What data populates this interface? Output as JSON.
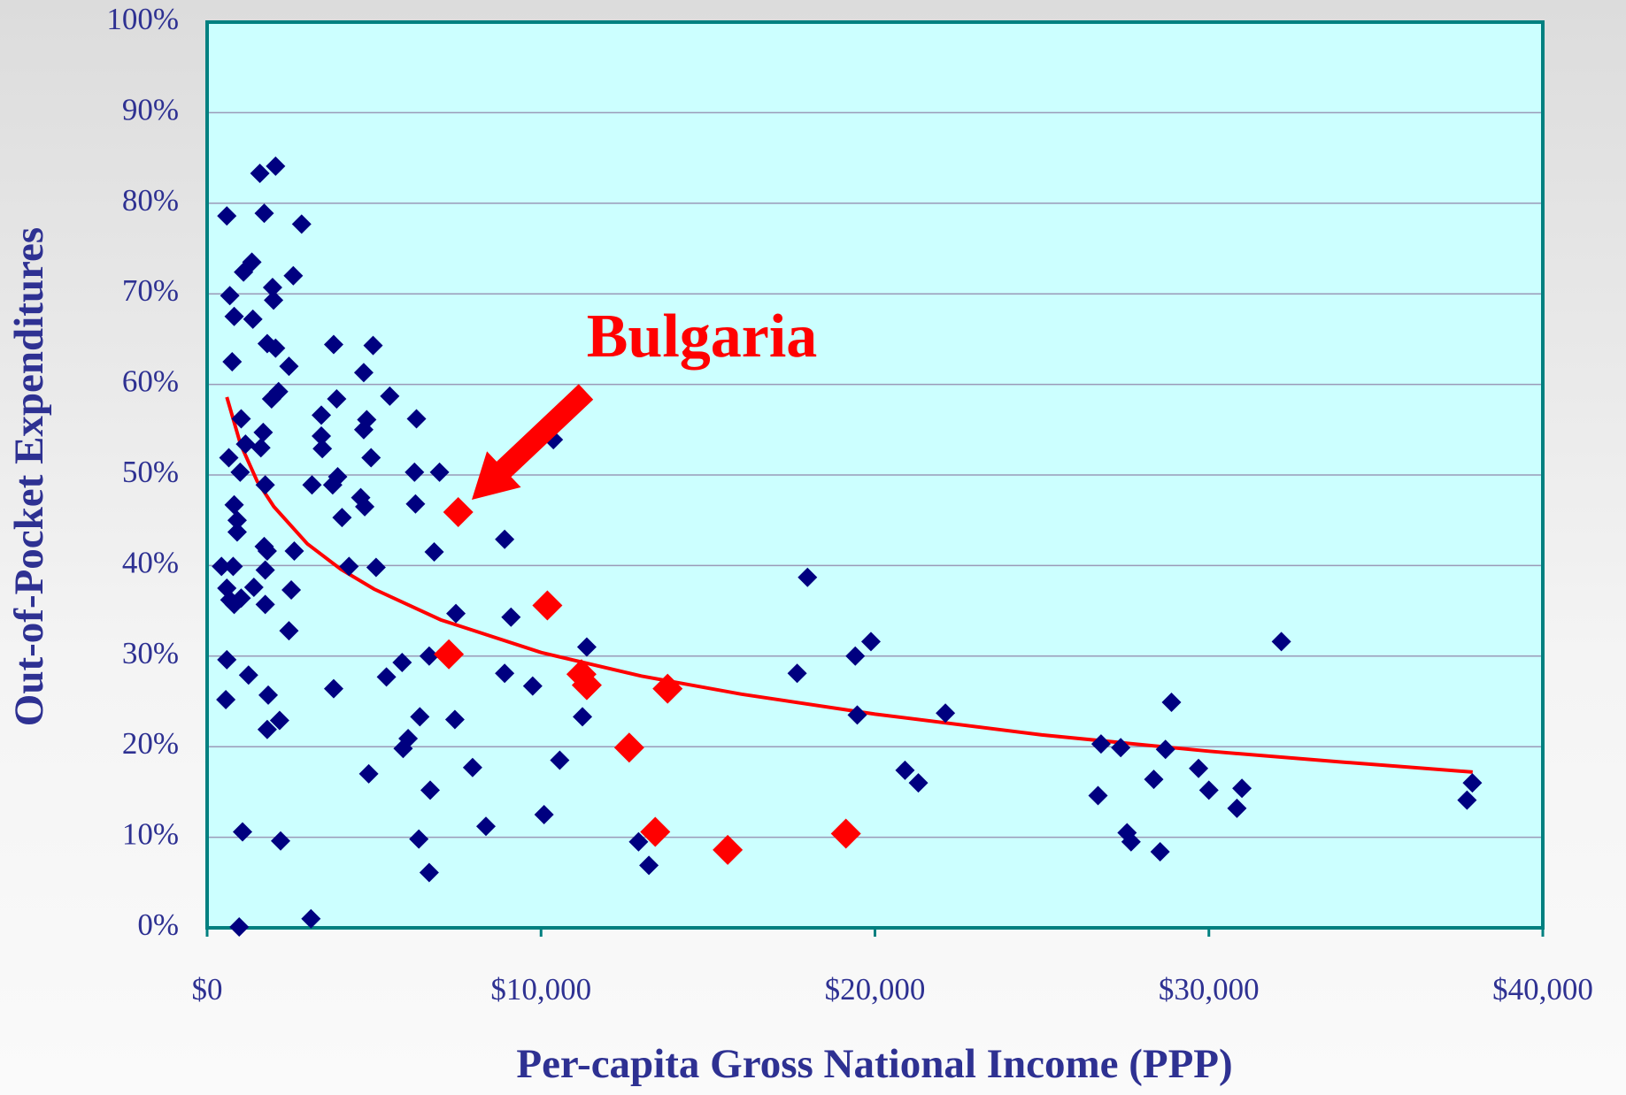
{
  "chart_data": {
    "type": "scatter",
    "xlabel": "Per-capita Gross National Income (PPP)",
    "ylabel": "Out-of-Pocket Expenditures",
    "xlim": [
      0,
      40000
    ],
    "ylim": [
      0,
      100
    ],
    "xticks": [
      {
        "value": 0,
        "label": "$0"
      },
      {
        "value": 10000,
        "label": "$10,000"
      },
      {
        "value": 20000,
        "label": "$20,000"
      },
      {
        "value": 30000,
        "label": "$30,000"
      },
      {
        "value": 40000,
        "label": "$40,000"
      }
    ],
    "yticks": [
      {
        "value": 0,
        "label": "0%"
      },
      {
        "value": 10,
        "label": "10%"
      },
      {
        "value": 20,
        "label": "20%"
      },
      {
        "value": 30,
        "label": "30%"
      },
      {
        "value": 40,
        "label": "40%"
      },
      {
        "value": 50,
        "label": "50%"
      },
      {
        "value": 60,
        "label": "60%"
      },
      {
        "value": 70,
        "label": "70%"
      },
      {
        "value": 80,
        "label": "80%"
      },
      {
        "value": 90,
        "label": "90%"
      },
      {
        "value": 100,
        "label": "100%"
      }
    ],
    "grid": true,
    "annotations": [
      {
        "text": "Bulgaria",
        "color": "#ff0000"
      }
    ],
    "series": [
      {
        "mode": "markers",
        "color": "#000080",
        "x": [
          590,
          680,
          810,
          750,
          1090,
          1340,
          1370,
          1020,
          1150,
          650,
          990,
          810,
          900,
          900,
          430,
          780,
          590,
          680,
          810,
          1020,
          1400,
          590,
          560,
          1240,
          1060,
          960,
          1580,
          2050,
          1710,
          2830,
          2580,
          1960,
          1990,
          1800,
          2050,
          2450,
          2140,
          1930,
          1680,
          1610,
          1740,
          1710,
          1800,
          2610,
          1740,
          2520,
          1740,
          2450,
          1830,
          2170,
          1800,
          2200,
          3110,
          3790,
          3880,
          3420,
          3420,
          3450,
          3140,
          3910,
          3760,
          4040,
          4250,
          3790,
          4970,
          4690,
          4780,
          4690,
          4910,
          4600,
          4720,
          5060,
          5470,
          6270,
          6210,
          6960,
          6240,
          6800,
          5370,
          5840,
          6650,
          6020,
          5870,
          6370,
          4840,
          6680,
          6340,
          6650,
          7450,
          7420,
          7950,
          8350,
          8910,
          9100,
          8910,
          9750,
          10370,
          10090,
          10560,
          11370,
          11240,
          12920,
          13230,
          17980,
          17670,
          19410,
          19880,
          19470,
          20900,
          21300,
          22110,
          26770,
          27360,
          26680,
          27550,
          27670,
          28350,
          28880,
          28700,
          28540,
          29690,
          30000,
          30840,
          30990,
          32170,
          37890,
          37730
        ],
        "values": [
          78.6,
          69.8,
          67.5,
          62.5,
          72.4,
          73.5,
          67.2,
          56.2,
          53.4,
          51.9,
          50.3,
          46.7,
          45.0,
          43.7,
          39.9,
          39.9,
          37.5,
          36.2,
          35.7,
          36.4,
          37.6,
          29.6,
          25.2,
          27.9,
          10.6,
          0.1,
          83.3,
          84.1,
          78.9,
          77.7,
          72.0,
          70.7,
          69.3,
          64.5,
          64.0,
          62.0,
          59.2,
          58.4,
          54.7,
          53.0,
          48.9,
          42.1,
          41.6,
          41.6,
          39.5,
          37.3,
          35.7,
          32.8,
          25.7,
          22.9,
          21.9,
          9.6,
          1.0,
          64.4,
          58.4,
          56.6,
          54.3,
          52.9,
          48.9,
          49.8,
          48.9,
          45.3,
          39.9,
          26.4,
          64.3,
          61.3,
          56.1,
          55.0,
          51.9,
          47.5,
          46.5,
          39.8,
          58.7,
          56.2,
          50.3,
          50.3,
          46.8,
          41.5,
          27.7,
          29.3,
          30.0,
          20.9,
          19.8,
          23.3,
          17.0,
          15.2,
          9.8,
          6.1,
          34.7,
          23.0,
          17.7,
          11.2,
          42.9,
          34.3,
          28.1,
          26.7,
          53.9,
          12.5,
          18.5,
          31.0,
          23.3,
          9.5,
          6.9,
          38.7,
          28.1,
          30.0,
          31.6,
          23.5,
          17.4,
          16.0,
          23.7,
          20.3,
          19.9,
          14.6,
          10.5,
          9.5,
          16.4,
          24.9,
          19.7,
          8.4,
          17.6,
          15.2,
          13.2,
          15.4,
          31.6,
          16.0,
          14.1
        ]
      },
      {
        "mode": "markers",
        "color": "#ff0000",
        "x": [
          7520,
          7240,
          10190,
          11210,
          11370,
          13790,
          12640,
          13420,
          15590,
          19130
        ],
        "values": [
          45.9,
          30.2,
          35.6,
          28.0,
          26.8,
          26.4,
          19.9,
          10.6,
          8.6,
          10.4
        ]
      },
      {
        "mode": "line",
        "color": "#ff0000",
        "x": [
          590,
          1000,
          1500,
          2000,
          3000,
          4000,
          5000,
          7000,
          10000,
          13000,
          16000,
          20000,
          25000,
          30000,
          34000,
          37900
        ],
        "values": [
          58.6,
          53.4,
          49.3,
          46.5,
          42.4,
          39.6,
          37.4,
          34.0,
          30.4,
          27.8,
          25.8,
          23.6,
          21.3,
          19.5,
          18.3,
          17.2
        ]
      }
    ]
  }
}
